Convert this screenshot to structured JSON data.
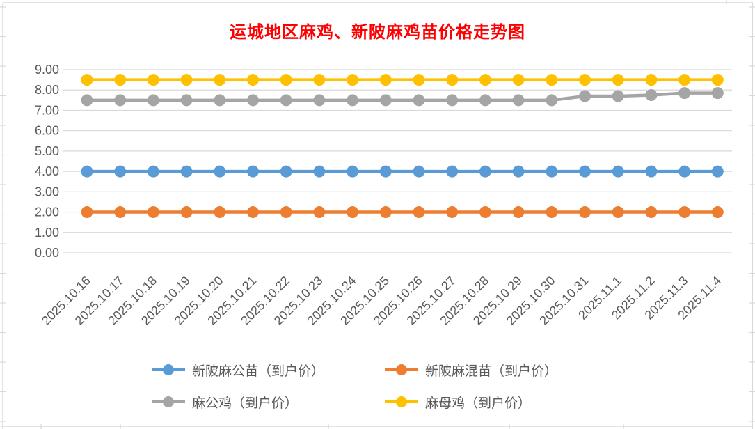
{
  "title": {
    "text": "运城地区麻鸡、新陂麻鸡苗价格走势图",
    "color": "#FF0000"
  },
  "chart_data": {
    "type": "line",
    "title": "运城地区麻鸡、新陂麻鸡苗价格走势图",
    "xlabel": "",
    "ylabel": "",
    "ylim": [
      0,
      9
    ],
    "ytick_step": 1,
    "ytick_labels": [
      "0.00",
      "1.00",
      "2.00",
      "3.00",
      "4.00",
      "5.00",
      "6.00",
      "7.00",
      "8.00",
      "9.00"
    ],
    "grid": true,
    "gridline_color": "#D9D9D9",
    "axis_text_color": "#595959",
    "legend_position": "bottom",
    "categories": [
      "2025.10.16",
      "2025.10.17",
      "2025.10.18",
      "2025.10.19",
      "2025.10.20",
      "2025.10.21",
      "2025.10.22",
      "2025.10.23",
      "2025.10.24",
      "2025.10.25",
      "2025.10.26",
      "2025.10.27",
      "2025.10.28",
      "2025.10.29",
      "2025.10.30",
      "2025.10.31",
      "2025.11.1",
      "2025.11.2",
      "2025.11.3",
      "2025.11.4"
    ],
    "series": [
      {
        "name": "新陂麻公苗（到户价）",
        "color": "#5B9BD5",
        "values": [
          4.0,
          4.0,
          4.0,
          4.0,
          4.0,
          4.0,
          4.0,
          4.0,
          4.0,
          4.0,
          4.0,
          4.0,
          4.0,
          4.0,
          4.0,
          4.0,
          4.0,
          4.0,
          4.0,
          4.0
        ]
      },
      {
        "name": "新陂麻混苗（到户价）",
        "color": "#ED7D31",
        "values": [
          2.0,
          2.0,
          2.0,
          2.0,
          2.0,
          2.0,
          2.0,
          2.0,
          2.0,
          2.0,
          2.0,
          2.0,
          2.0,
          2.0,
          2.0,
          2.0,
          2.0,
          2.0,
          2.0,
          2.0
        ]
      },
      {
        "name": "麻公鸡（到户价）",
        "color": "#A5A5A5",
        "values": [
          7.5,
          7.5,
          7.5,
          7.5,
          7.5,
          7.5,
          7.5,
          7.5,
          7.5,
          7.5,
          7.5,
          7.5,
          7.5,
          7.5,
          7.5,
          7.7,
          7.7,
          7.75,
          7.85,
          7.85
        ]
      },
      {
        "name": "麻母鸡（到户价）",
        "color": "#FFC000",
        "values": [
          8.5,
          8.5,
          8.5,
          8.5,
          8.5,
          8.5,
          8.5,
          8.5,
          8.5,
          8.5,
          8.5,
          8.5,
          8.5,
          8.5,
          8.5,
          8.5,
          8.5,
          8.5,
          8.5,
          8.5
        ]
      }
    ],
    "worksheet_frame_color": "#D9D9D9"
  }
}
